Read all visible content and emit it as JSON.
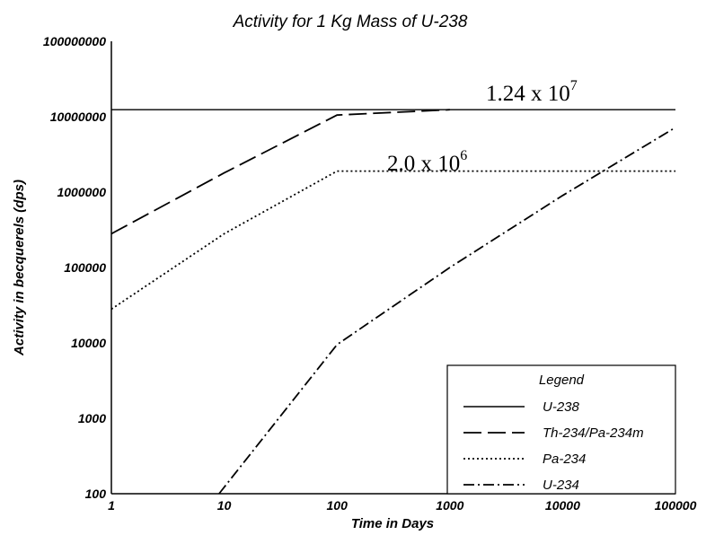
{
  "chart_data": {
    "type": "line",
    "title": "Activity for 1 Kg Mass of U-238",
    "xlabel": "Time in Days",
    "ylabel": "Activity in becquerels (dps)",
    "xscale": "log",
    "yscale": "log",
    "xlim": [
      1,
      100000
    ],
    "ylim": [
      100,
      100000000
    ],
    "xticks": [
      "1",
      "10",
      "100",
      "1000",
      "10000",
      "100000"
    ],
    "yticks": [
      "100",
      "1000",
      "10000",
      "100000",
      "1000000",
      "10000000",
      "100000000"
    ],
    "grid": false,
    "legend": {
      "title": "Legend",
      "position": "bottom-right"
    },
    "series": [
      {
        "name": "U-238",
        "style": "solid",
        "x": [
          1,
          100000
        ],
        "y": [
          12400000,
          12400000
        ]
      },
      {
        "name": "Th-234/Pa-234m",
        "style": "dashed",
        "x": [
          1,
          10,
          100,
          1000
        ],
        "y": [
          280000,
          1800000,
          10500000,
          12400000
        ]
      },
      {
        "name": "Pa-234",
        "style": "dotted",
        "x": [
          1,
          10,
          100,
          100000
        ],
        "y": [
          28000,
          280000,
          1900000,
          1900000
        ]
      },
      {
        "name": "U-234",
        "style": "dashdot",
        "x": [
          9,
          100,
          1000,
          10000,
          100000
        ],
        "y": [
          100,
          9500,
          100000,
          900000,
          7200000
        ]
      }
    ],
    "annotations": [
      {
        "base": "1.24 x 10",
        "exp": "7"
      },
      {
        "base": "2.0 x 10",
        "exp": "6"
      }
    ]
  }
}
